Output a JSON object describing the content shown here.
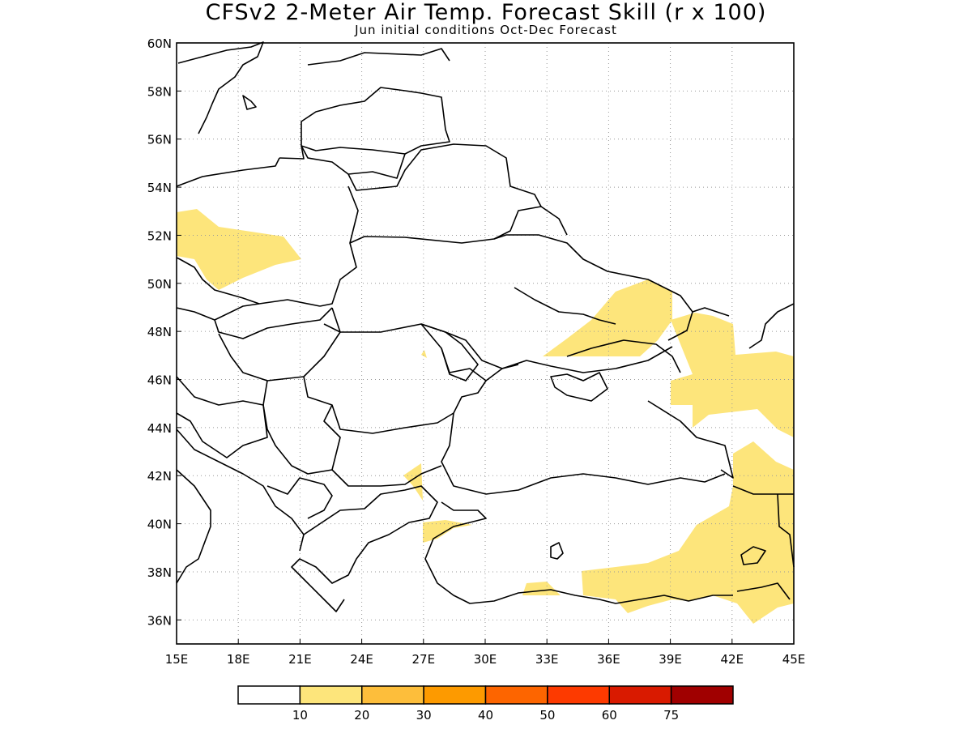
{
  "title": "CFSv2 2-Meter Air Temp. Forecast Skill (r x 100)",
  "subtitle": "Jun initial conditions  Oct-Dec Forecast",
  "map": {
    "lon_range": [
      15,
      45
    ],
    "lat_range": [
      35,
      60
    ],
    "x_ticks": [
      "15E",
      "18E",
      "21E",
      "24E",
      "27E",
      "30E",
      "33E",
      "36E",
      "39E",
      "42E",
      "45E"
    ],
    "y_ticks": [
      "60N",
      "58N",
      "56N",
      "54N",
      "52N",
      "50N",
      "48N",
      "46N",
      "44N",
      "42N",
      "40N",
      "38N",
      "36N"
    ],
    "grid": "dotted",
    "skill_fill_color": "#fde57b"
  },
  "colorbar": {
    "colors": [
      "#ffffff",
      "#fde57b",
      "#fdbe3b",
      "#fd9a00",
      "#fd6500",
      "#fd3a00",
      "#d91a00",
      "#a00000"
    ],
    "labels": [
      "10",
      "20",
      "30",
      "40",
      "50",
      "60",
      "75"
    ]
  }
}
